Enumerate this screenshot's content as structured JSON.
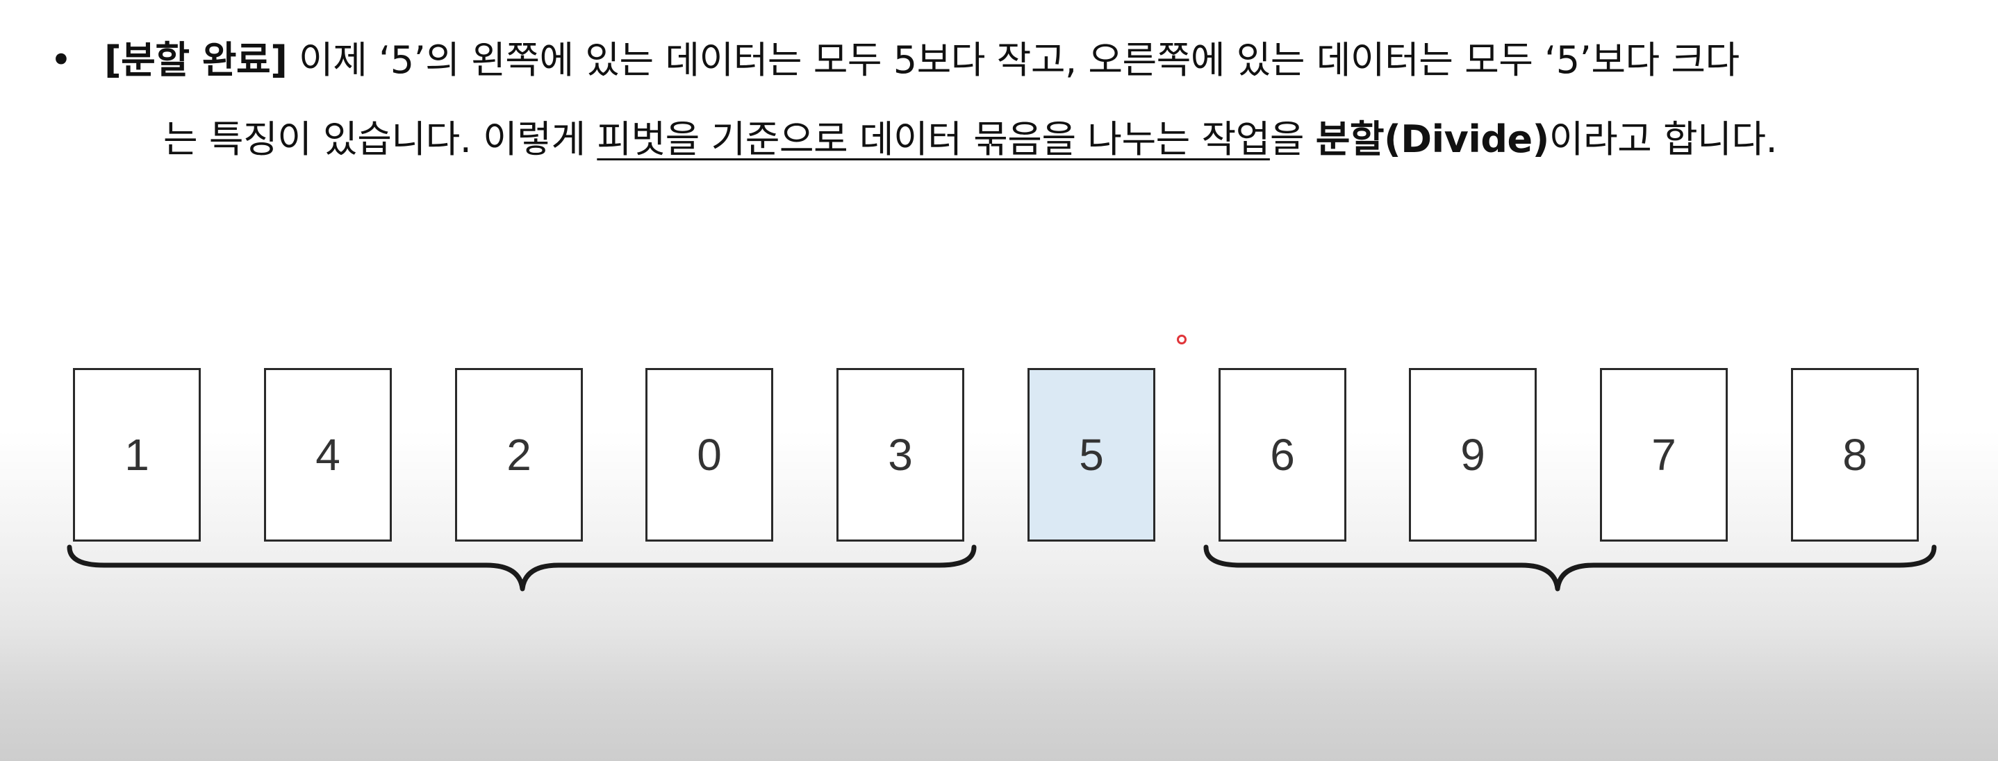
{
  "description_text": {
    "bullet": "•",
    "line1": {
      "bold_label": "[분할 완료]",
      "text": " 이제 ‘5’의 왼쪽에 있는 데이터는 모두 5보다 작고, 오른쪽에 있는 데이터는 모두 ‘5’보다 크다"
    },
    "line2": {
      "text_before": "는 특징이 있습니다. 이렇게 ",
      "underlined": "피벗을 기준으로 데이터 묶음을 나누는 작업",
      "text_middle": "을 ",
      "bold_term": "분할(Divide)",
      "text_after": "이라고 합니다."
    }
  },
  "array": {
    "values": [
      "1",
      "4",
      "2",
      "0",
      "3",
      "5",
      "6",
      "9",
      "7",
      "8"
    ],
    "pivot_index": 5,
    "pivot_color": "#dbe9f4"
  }
}
